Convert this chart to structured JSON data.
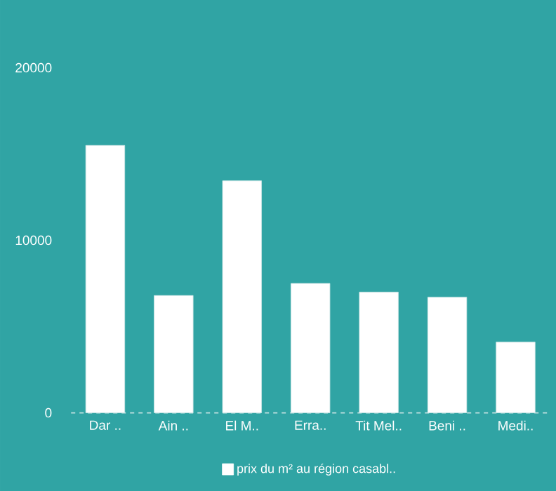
{
  "chart_data": {
    "type": "bar",
    "categories": [
      "Dar ..",
      "Ain ..",
      "El M..",
      "Erra..",
      "Tit Mel..",
      "Beni ..",
      "Medi.."
    ],
    "series": [
      {
        "name": "prix du m² au région casabl..",
        "color": "#ffffff",
        "values": [
          15500,
          6800,
          13450,
          7500,
          7000,
          6700,
          4100
        ]
      }
    ],
    "ylim": [
      0,
      20000
    ],
    "yticks": [
      0,
      10000,
      20000
    ],
    "legend": "bottom"
  }
}
